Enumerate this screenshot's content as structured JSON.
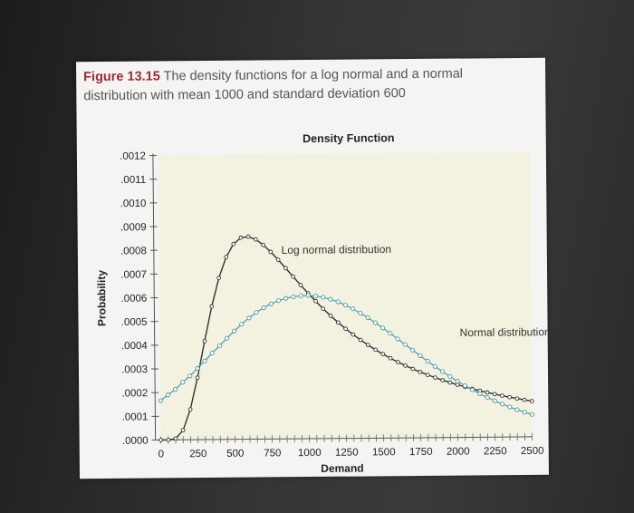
{
  "caption": {
    "figure_label": "Figure 13.15",
    "text": "The density functions for a log normal and a normal distribution with mean 1000 and standard deviation 600"
  },
  "colors": {
    "plot_background": "#f3f2e0",
    "log_normal_line": "#333333",
    "normal_line": "#4a9aa6",
    "figure_label": "#a0263a"
  },
  "chart_data": {
    "type": "line",
    "title": "Density Function",
    "xlabel": "Demand",
    "ylabel": "Probability",
    "xlim": [
      0,
      2500
    ],
    "ylim": [
      0,
      0.0012
    ],
    "x_ticks": [
      0,
      250,
      500,
      750,
      1000,
      1250,
      1500,
      1750,
      2000,
      2250,
      2500
    ],
    "x_tick_labels": [
      "0",
      "250",
      "500",
      "750",
      "1000",
      "1250",
      "1500",
      "1750",
      "2000",
      "2250",
      "2500"
    ],
    "y_ticks": [
      0,
      0.0001,
      0.0002,
      0.0003,
      0.0004,
      0.0005,
      0.0006,
      0.0007,
      0.0008,
      0.0009,
      0.001,
      0.0011,
      0.0012
    ],
    "y_tick_labels": [
      ".0000",
      ".0001",
      ".0002",
      ".0003",
      ".0004",
      ".0005",
      ".0006",
      ".0007",
      ".0008",
      ".0009",
      ".0010",
      ".0011",
      ".0012"
    ],
    "grid": false,
    "x": [
      0,
      50,
      100,
      150,
      200,
      250,
      300,
      350,
      400,
      450,
      500,
      550,
      600,
      650,
      700,
      750,
      800,
      850,
      900,
      950,
      1000,
      1050,
      1100,
      1150,
      1200,
      1250,
      1300,
      1350,
      1400,
      1450,
      1500,
      1550,
      1600,
      1650,
      1700,
      1750,
      1800,
      1850,
      1900,
      1950,
      2000,
      2050,
      2100,
      2150,
      2200,
      2250,
      2300,
      2350,
      2400,
      2450,
      2500
    ],
    "series": [
      {
        "name": "Log normal distribution",
        "values": [
          0,
          1e-07,
          5.5e-06,
          4.04e-05,
          0.0001278,
          0.0002614,
          0.0004151,
          0.0005611,
          0.0006815,
          0.000769,
          0.0008237,
          0.00085,
          0.000854,
          0.000842,
          0.000819,
          0.0007892,
          0.0007556,
          0.00072,
          0.0006838,
          0.000648,
          0.0006131,
          0.0005795,
          0.0005476,
          0.0005174,
          0.000489,
          0.0004624,
          0.0004376,
          0.0004144,
          0.0003928,
          0.0003727,
          0.0003539,
          0.0003364,
          0.00032,
          0.0003048,
          0.0002905,
          0.0002772,
          0.0002647,
          0.000253,
          0.000242,
          0.0002317,
          0.000222,
          0.0002128,
          0.0002042,
          0.0001961,
          0.0001884,
          0.0001812,
          0.0001743,
          0.0001678,
          0.0001617,
          0.0001558,
          0.0001503
        ]
      },
      {
        "name": "Normal distribution",
        "values": [
          0.000166,
          0.0001898,
          0.000213,
          0.0002425,
          0.000269,
          0.000301,
          0.0003314,
          0.0003645,
          0.0003949,
          0.0004266,
          0.0004566,
          0.0004851,
          0.0005112,
          0.0005344,
          0.0005538,
          0.00057,
          0.0005835,
          0.0005925,
          0.000599,
          0.000603,
          0.000604,
          0.000601,
          0.0005955,
          0.000587,
          0.000576,
          0.000562,
          0.000546,
          0.0005277,
          0.000508,
          0.0004867,
          0.0004645,
          0.0004412,
          0.0004176,
          0.0003936,
          0.0003698,
          0.0003461,
          0.0003226,
          0.0003,
          0.000278,
          0.000257,
          0.000237,
          0.000218,
          0.0002,
          0.0001834,
          0.0001675,
          0.0001527,
          0.000139,
          0.0001263,
          0.0001147,
          0.000104,
          9.42e-05
        ]
      }
    ],
    "annotations": [
      {
        "text": "Log normal distribution",
        "series": 0,
        "near_x": 700
      },
      {
        "text": "Normal distribution",
        "series": 1,
        "near_x": 1500
      }
    ]
  }
}
